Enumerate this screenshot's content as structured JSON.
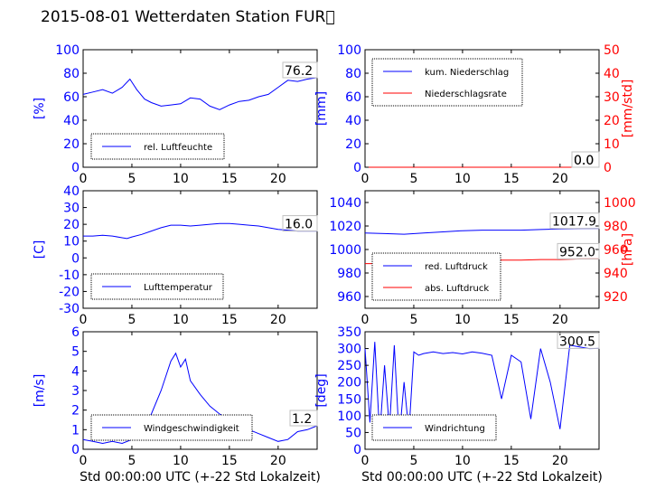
{
  "title": "2015-08-01 Wetterdaten Station FUR\u0000",
  "colors": {
    "blue": "#0000ff",
    "red": "#ff0000",
    "light_blue": "#8080ff",
    "dark_red": "#800000"
  },
  "chart_data": [
    {
      "type": "line",
      "panel": "humidity",
      "ylabel": "[%]",
      "xlabel": "",
      "xlim": [
        0,
        24
      ],
      "ylim": [
        0,
        100
      ],
      "xticks": [
        0,
        5,
        10,
        15,
        20
      ],
      "yticks": [
        0,
        20,
        40,
        60,
        80,
        100
      ],
      "grid": false,
      "legend_position": "lower-left",
      "last_value_label": "76.2",
      "series": [
        {
          "name": "rel. Luftfeuchte",
          "axis": "left",
          "color": "#0000ff",
          "x": [
            0,
            1,
            2,
            3,
            4,
            4.8,
            5.5,
            6.3,
            7,
            8,
            9,
            10,
            11,
            12,
            13,
            14,
            15,
            16,
            17,
            18,
            19,
            20,
            21,
            22,
            23,
            24
          ],
          "y": [
            62,
            64,
            66,
            63,
            68,
            75,
            66,
            58,
            55,
            52,
            53,
            54,
            59,
            58,
            52,
            49,
            53,
            56,
            57,
            60,
            62,
            68,
            74,
            73,
            75,
            76.2
          ]
        }
      ]
    },
    {
      "type": "line",
      "panel": "precipitation",
      "ylabel": "[mm]",
      "ylabel_right": "[mm/std]",
      "xlim": [
        0,
        24
      ],
      "ylim": [
        0,
        100
      ],
      "ylim_right": [
        0,
        50
      ],
      "xticks": [
        0,
        5,
        10,
        15,
        20
      ],
      "yticks": [
        0,
        20,
        40,
        60,
        80,
        100
      ],
      "yticks_right": [
        0,
        10,
        20,
        30,
        40,
        50
      ],
      "grid": false,
      "legend_position": "upper-left",
      "last_value_label": "0.0",
      "last_value_label_right": "0.0",
      "series": [
        {
          "name": "kum. Niederschlag",
          "axis": "left",
          "color": "#0000ff",
          "x": [
            0,
            24
          ],
          "y": [
            0,
            0
          ]
        },
        {
          "name": "Niederschlagsrate",
          "axis": "right",
          "color": "#ff0000",
          "x": [
            0,
            24
          ],
          "y": [
            0,
            0
          ]
        }
      ]
    },
    {
      "type": "line",
      "panel": "temperature",
      "ylabel": "[C]",
      "xlim": [
        0,
        24
      ],
      "ylim": [
        -30,
        40
      ],
      "xticks": [
        0,
        5,
        10,
        15,
        20
      ],
      "yticks": [
        -30,
        -20,
        -10,
        0,
        10,
        20,
        30,
        40
      ],
      "grid": false,
      "legend_position": "lower-left",
      "last_value_label": "16.0",
      "series": [
        {
          "name": "Lufttemperatur",
          "axis": "left",
          "color": "#0000ff",
          "x": [
            0,
            1,
            2,
            3,
            4,
            4.5,
            5,
            6,
            7,
            8,
            9,
            10,
            11,
            12,
            13,
            14,
            15,
            16,
            17,
            18,
            19,
            20,
            21,
            22,
            23,
            24
          ],
          "y": [
            13,
            13,
            13.5,
            13,
            12,
            11.5,
            12.5,
            14,
            16,
            18,
            19.5,
            19.5,
            19,
            19.5,
            20,
            20.5,
            20.5,
            20,
            19.5,
            19,
            18,
            17,
            16.5,
            16,
            16,
            16.0
          ]
        }
      ]
    },
    {
      "type": "line",
      "panel": "pressure",
      "ylabel_right": "[hPa]",
      "xlim": [
        0,
        24
      ],
      "ylim": [
        950,
        1050
      ],
      "ylim_right": [
        910,
        1010
      ],
      "xticks": [
        0,
        5,
        10,
        15,
        20
      ],
      "yticks": [
        960,
        980,
        1000,
        1020,
        1040
      ],
      "yticks_right": [
        920,
        940,
        960,
        980,
        1000
      ],
      "grid": false,
      "legend_position": "lower-left",
      "last_value_label": "1017.9",
      "last_value_label_right": "952.0",
      "series": [
        {
          "name": "red. Luftdruck",
          "axis": "left",
          "color": "#0000ff",
          "x": [
            0,
            2,
            4,
            6,
            8,
            10,
            12,
            14,
            16,
            18,
            20,
            22,
            24
          ],
          "y": [
            1014,
            1013.5,
            1013,
            1014,
            1015,
            1016,
            1016.5,
            1016.5,
            1016.5,
            1017,
            1017.5,
            1017.8,
            1017.9
          ]
        },
        {
          "name": "abs. Luftdruck",
          "axis": "right",
          "color": "#ff0000",
          "x": [
            0,
            2,
            4,
            6,
            8,
            10,
            12,
            14,
            16,
            18,
            20,
            22,
            24
          ],
          "y": [
            948,
            948,
            947.5,
            948,
            949,
            950.5,
            951,
            951,
            951,
            951.5,
            951.5,
            952,
            952.0
          ]
        }
      ]
    },
    {
      "type": "line",
      "panel": "wind_speed",
      "ylabel": "[m/s]",
      "xlabel": "Std 00:00:00 UTC (+-22 Std Lokalzeit)",
      "xlim": [
        0,
        24
      ],
      "ylim": [
        0,
        6
      ],
      "xticks": [
        0,
        5,
        10,
        15,
        20
      ],
      "yticks": [
        0,
        1,
        2,
        3,
        4,
        5,
        6
      ],
      "grid": false,
      "legend_position": "lower-left",
      "last_value_label": "1.2",
      "series": [
        {
          "name": "Windgeschwindigkeit",
          "axis": "left",
          "color": "#0000ff",
          "x": [
            0,
            1,
            2,
            3,
            4,
            5,
            6,
            7,
            8,
            9,
            9.5,
            10,
            10.5,
            11,
            12,
            13,
            14,
            15,
            16,
            17,
            18,
            19,
            20,
            21,
            22,
            23,
            24
          ],
          "y": [
            0.5,
            0.4,
            0.3,
            0.4,
            0.3,
            0.5,
            1.0,
            1.8,
            3.0,
            4.5,
            4.9,
            4.2,
            4.6,
            3.5,
            2.8,
            2.2,
            1.8,
            1.5,
            1.2,
            1.0,
            0.8,
            0.6,
            0.4,
            0.5,
            0.9,
            1.0,
            1.2
          ]
        }
      ]
    },
    {
      "type": "line",
      "panel": "wind_direction",
      "ylabel": "[deg]",
      "xlabel": "Std 00:00:00 UTC (+-22 Std Lokalzeit)",
      "xlim": [
        0,
        24
      ],
      "ylim": [
        0,
        350
      ],
      "xticks": [
        0,
        5,
        10,
        15,
        20
      ],
      "yticks": [
        0,
        50,
        100,
        150,
        200,
        250,
        300,
        350
      ],
      "grid": false,
      "legend_position": "lower-left",
      "last_value_label": "300.5",
      "series": [
        {
          "name": "Windrichtung",
          "axis": "left",
          "color": "#0000ff",
          "x": [
            0,
            0.5,
            1,
            1.5,
            2,
            2.5,
            3,
            3.5,
            4,
            4.5,
            5,
            5.5,
            6,
            7,
            8,
            9,
            10,
            11,
            12,
            13,
            14,
            15,
            16,
            17,
            18,
            19,
            20,
            21,
            22,
            23,
            24
          ],
          "y": [
            300,
            80,
            320,
            40,
            250,
            60,
            310,
            30,
            200,
            50,
            290,
            280,
            285,
            290,
            285,
            288,
            284,
            290,
            286,
            280,
            150,
            280,
            260,
            90,
            300,
            200,
            60,
            310,
            305,
            300,
            300.5
          ]
        }
      ]
    }
  ]
}
